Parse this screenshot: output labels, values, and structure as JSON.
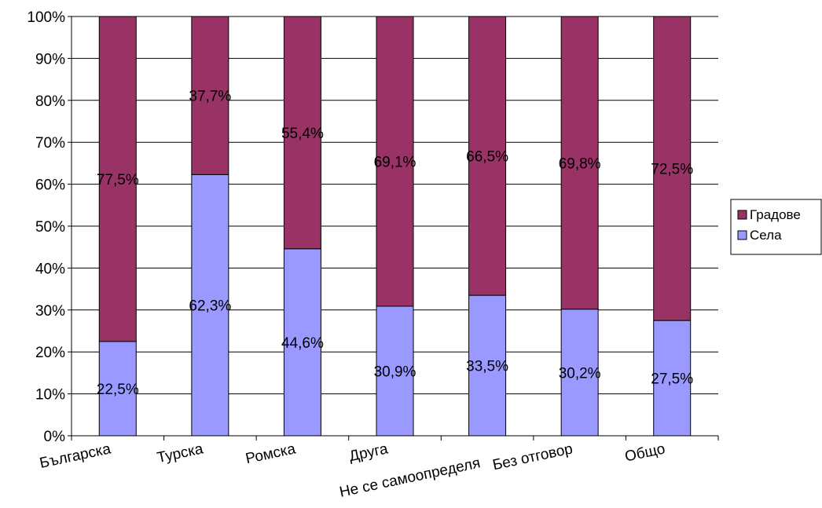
{
  "chart_data": {
    "type": "bar",
    "stacked": true,
    "percent": true,
    "categories": [
      "Българска",
      "Турска",
      "Ромска",
      "Друга",
      "Не се самоопределя",
      "Без отговор",
      "Общо"
    ],
    "series": [
      {
        "name": "Села",
        "color": "#9999ff",
        "values": [
          22.5,
          62.3,
          44.6,
          30.9,
          33.5,
          30.2,
          27.5
        ],
        "labels": [
          "22,5%",
          "62,3%",
          "44,6%",
          "30,9%",
          "33,5%",
          "30,2%",
          "27,5%"
        ]
      },
      {
        "name": "Градове",
        "color": "#993366",
        "values": [
          77.5,
          37.7,
          55.4,
          69.1,
          66.5,
          69.8,
          72.5
        ],
        "labels": [
          "77,5%",
          "37,7%",
          "55,4%",
          "69,1%",
          "66,5%",
          "69,8%",
          "72,5%"
        ]
      }
    ],
    "ylim": [
      0,
      100
    ],
    "y_ticks": [
      "0%",
      "10%",
      "20%",
      "30%",
      "40%",
      "50%",
      "60%",
      "70%",
      "80%",
      "90%",
      "100%"
    ],
    "grid": true,
    "legend_position": "right",
    "legend_order": [
      "Градове",
      "Села"
    ],
    "xlabel": "",
    "ylabel": ""
  }
}
